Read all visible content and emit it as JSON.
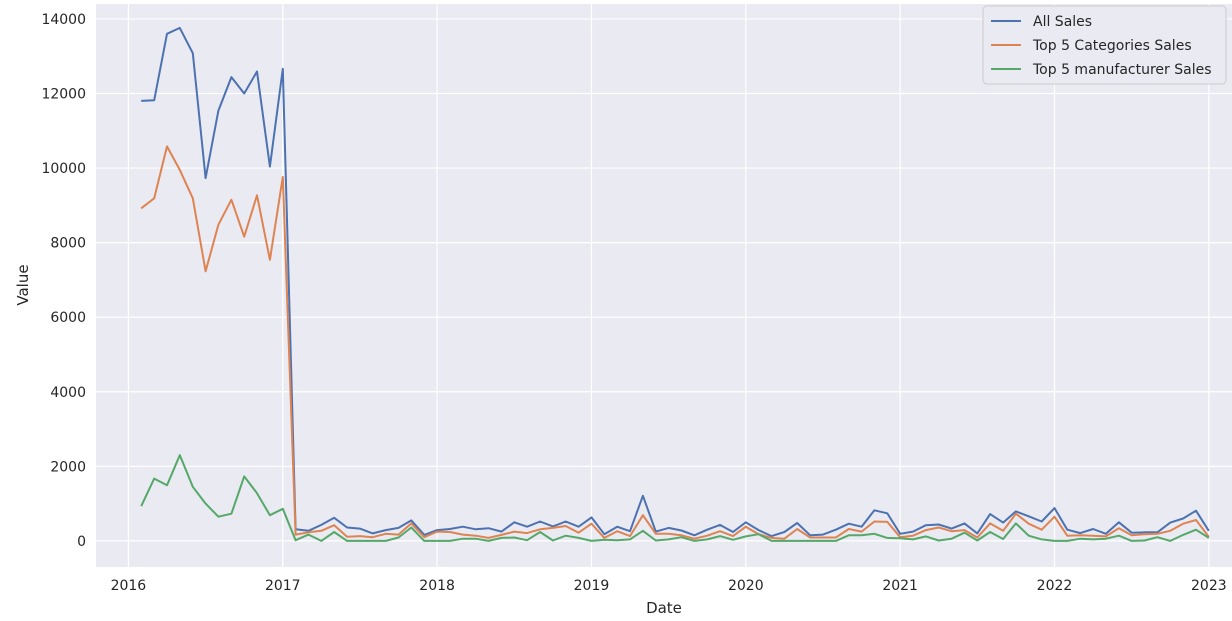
{
  "chart_data": {
    "type": "line",
    "xlabel": "Date",
    "ylabel": "Value",
    "xlim": [
      2015.79,
      2023.15
    ],
    "ylim": [
      -700,
      14400
    ],
    "grid": true,
    "legend_position": "top-right",
    "x_ticks": [
      2016,
      2017,
      2018,
      2019,
      2020,
      2021,
      2022,
      2023
    ],
    "x_tick_labels": [
      "2016",
      "2017",
      "2018",
      "2019",
      "2020",
      "2021",
      "2022",
      "2023"
    ],
    "y_ticks": [
      0,
      2000,
      4000,
      6000,
      8000,
      10000,
      12000,
      14000
    ],
    "y_tick_labels": [
      "0",
      "2000",
      "4000",
      "6000",
      "8000",
      "10000",
      "12000",
      "14000"
    ],
    "x": [
      2016.083,
      2016.167,
      2016.25,
      2016.333,
      2016.417,
      2016.5,
      2016.583,
      2016.667,
      2016.75,
      2016.833,
      2016.917,
      2017.0,
      2017.083,
      2017.167,
      2017.25,
      2017.333,
      2017.417,
      2017.5,
      2017.583,
      2017.667,
      2017.75,
      2017.833,
      2017.917,
      2018.0,
      2018.083,
      2018.167,
      2018.25,
      2018.333,
      2018.417,
      2018.5,
      2018.583,
      2018.667,
      2018.75,
      2018.833,
      2018.917,
      2019.0,
      2019.083,
      2019.167,
      2019.25,
      2019.333,
      2019.417,
      2019.5,
      2019.583,
      2019.667,
      2019.75,
      2019.833,
      2019.917,
      2020.0,
      2020.083,
      2020.167,
      2020.25,
      2020.333,
      2020.417,
      2020.5,
      2020.583,
      2020.667,
      2020.75,
      2020.833,
      2020.917,
      2021.0,
      2021.083,
      2021.167,
      2021.25,
      2021.333,
      2021.417,
      2021.5,
      2021.583,
      2021.667,
      2021.75,
      2021.833,
      2021.917,
      2022.0,
      2022.083,
      2022.167,
      2022.25,
      2022.333,
      2022.417,
      2022.5,
      2022.583,
      2022.667,
      2022.75,
      2022.833,
      2022.917,
      2023.0
    ],
    "series": [
      {
        "name": "All Sales",
        "color": "#4c72b0",
        "values": [
          11800,
          11820,
          13600,
          13760,
          13080,
          9730,
          11540,
          12440,
          12000,
          12590,
          10040,
          12660,
          310,
          270,
          430,
          620,
          360,
          330,
          200,
          290,
          350,
          550,
          160,
          290,
          320,
          380,
          310,
          340,
          250,
          500,
          380,
          520,
          390,
          520,
          380,
          630,
          180,
          380,
          260,
          1210,
          250,
          350,
          280,
          150,
          300,
          430,
          240,
          500,
          290,
          130,
          240,
          480,
          150,
          170,
          300,
          460,
          380,
          820,
          740,
          190,
          250,
          420,
          440,
          330,
          470,
          200,
          720,
          490,
          790,
          660,
          520,
          880,
          300,
          210,
          320,
          190,
          500,
          220,
          230,
          230,
          490,
          600,
          810,
          270
        ]
      },
      {
        "name": "Top 5 Categories Sales",
        "color": "#dd8452",
        "values": [
          8920,
          9190,
          10580,
          9950,
          9190,
          7230,
          8480,
          9150,
          8160,
          9270,
          7540,
          9760,
          170,
          230,
          270,
          420,
          110,
          130,
          100,
          190,
          170,
          470,
          100,
          250,
          240,
          170,
          140,
          80,
          160,
          250,
          210,
          310,
          350,
          400,
          220,
          460,
          80,
          260,
          130,
          690,
          190,
          190,
          150,
          60,
          140,
          260,
          130,
          380,
          180,
          80,
          60,
          320,
          90,
          90,
          90,
          320,
          250,
          520,
          510,
          100,
          140,
          290,
          360,
          260,
          290,
          90,
          470,
          270,
          730,
          460,
          300,
          650,
          140,
          150,
          140,
          120,
          340,
          150,
          180,
          190,
          270,
          460,
          560,
          110
        ]
      },
      {
        "name": "Top 5 manufacturer Sales",
        "color": "#55a868",
        "values": [
          930,
          1670,
          1490,
          2300,
          1450,
          1000,
          650,
          730,
          1730,
          1280,
          690,
          860,
          20,
          170,
          0,
          240,
          0,
          0,
          0,
          0,
          90,
          360,
          0,
          0,
          0,
          60,
          60,
          0,
          80,
          90,
          20,
          240,
          10,
          140,
          80,
          0,
          30,
          20,
          40,
          270,
          10,
          40,
          100,
          0,
          40,
          130,
          30,
          120,
          180,
          0,
          0,
          0,
          0,
          0,
          0,
          150,
          150,
          190,
          80,
          70,
          40,
          120,
          10,
          60,
          220,
          10,
          240,
          50,
          470,
          140,
          40,
          0,
          0,
          60,
          40,
          60,
          140,
          0,
          10,
          100,
          0,
          160,
          300,
          80
        ]
      }
    ]
  }
}
